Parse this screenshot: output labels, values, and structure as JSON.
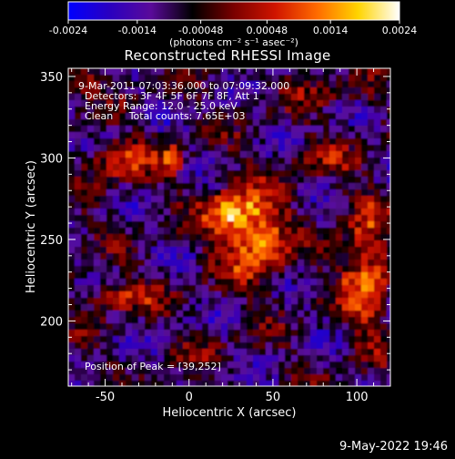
{
  "chart_data": {
    "type": "heatmap",
    "title": "Reconstructed RHESSI Image",
    "xlabel": "Heliocentric X (arcsec)",
    "ylabel": "Heliocentric Y (arcsec)",
    "xlim": [
      -72,
      120
    ],
    "ylim": [
      160,
      355
    ],
    "xticks": [
      -50,
      0,
      50,
      100
    ],
    "yticks": [
      200,
      250,
      300,
      350
    ],
    "colorbar": {
      "range": [
        -0.0024,
        0.0024
      ],
      "ticks": [
        "-0.0024",
        "-0.0014",
        "-0.00048",
        "0.00048",
        "0.0014",
        "0.0024"
      ],
      "unit_label": "(photons cm⁻² s⁻¹ asec⁻²)",
      "palette": [
        "#0000ff",
        "#2a00c0",
        "#5a0a9a",
        "#000000",
        "#7a0000",
        "#d01400",
        "#ff6a00",
        "#ffd400",
        "#ffffff"
      ]
    },
    "annotations": [
      "9-Mar-2011 07:03:36.000 to 07:09:32.000",
      "Detectors: 3F 4F 5F 6F 7F 8F, Att 1",
      "Energy Range: 12.0 - 25.0 keV",
      "Clean     Total counts: 7.65E+03"
    ],
    "peak_label": "Position of Peak = [39,252]",
    "peak": [
      39,
      252
    ],
    "sources": [
      {
        "x": 39,
        "y": 252,
        "rx": 18,
        "ry": 26,
        "amp": 0.0024
      },
      {
        "x": 22,
        "y": 265,
        "rx": 14,
        "ry": 14,
        "amp": 0.0018
      },
      {
        "x": -40,
        "y": 298,
        "rx": 18,
        "ry": 12,
        "amp": 0.0016
      },
      {
        "x": -10,
        "y": 300,
        "rx": 6,
        "ry": 10,
        "amp": 0.0014
      },
      {
        "x": 105,
        "y": 230,
        "rx": 14,
        "ry": 40,
        "amp": 0.0019
      },
      {
        "x": -40,
        "y": 215,
        "rx": 22,
        "ry": 8,
        "amp": 0.0013
      },
      {
        "x": -65,
        "y": 345,
        "rx": 8,
        "ry": 8,
        "amp": 0.0012
      },
      {
        "x": 80,
        "y": 300,
        "rx": 20,
        "ry": 10,
        "amp": 0.0007
      },
      {
        "x": 85,
        "y": 340,
        "rx": 30,
        "ry": 8,
        "amp": 0.0006
      },
      {
        "x": 10,
        "y": 180,
        "rx": 15,
        "ry": 8,
        "amp": 0.0005
      }
    ]
  },
  "footer": {
    "date": "9-May-2022 19:46"
  }
}
